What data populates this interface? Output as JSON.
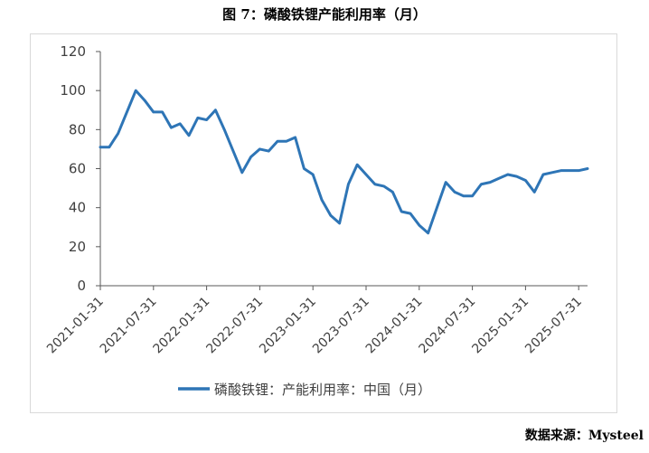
{
  "title": "图 7：磷酸铁锂产能利用率（月）",
  "source": "数据来源：Mysteel",
  "chart_data": {
    "type": "line",
    "title": "图 7：磷酸铁锂产能利用率（月）",
    "xlabel": "",
    "ylabel": "",
    "ylim": [
      0,
      120
    ],
    "yticks": [
      "0",
      "20",
      "40",
      "60",
      "80",
      "100",
      "120"
    ],
    "xticks": [
      "2021-01-31",
      "2021-07-31",
      "2022-01-31",
      "2022-07-31",
      "2023-01-31",
      "2023-07-31",
      "2024-01-31",
      "2024-07-31",
      "2025-01-31",
      "2025-07-31"
    ],
    "grid": false,
    "legend_position": "bottom",
    "series": [
      {
        "name": "磷酸铁锂：产能利用率：中国（月）",
        "color": "#2e75b6",
        "x": [
          "2021-01-31",
          "2021-02-28",
          "2021-03-31",
          "2021-04-30",
          "2021-05-31",
          "2021-06-30",
          "2021-07-31",
          "2021-08-31",
          "2021-09-30",
          "2021-10-31",
          "2021-11-30",
          "2021-12-31",
          "2022-01-31",
          "2022-02-28",
          "2022-03-31",
          "2022-04-30",
          "2022-05-31",
          "2022-06-30",
          "2022-07-31",
          "2022-08-31",
          "2022-09-30",
          "2022-10-31",
          "2022-11-30",
          "2022-12-31",
          "2023-01-31",
          "2023-02-28",
          "2023-03-31",
          "2023-04-30",
          "2023-05-31",
          "2023-06-30",
          "2023-07-31",
          "2023-08-31",
          "2023-09-30",
          "2023-10-31",
          "2023-11-30",
          "2023-12-31",
          "2024-01-31",
          "2024-02-29",
          "2024-03-31",
          "2024-04-30",
          "2024-05-31",
          "2024-06-30",
          "2024-07-31",
          "2024-08-31",
          "2024-09-30",
          "2024-10-31",
          "2024-11-30",
          "2024-12-31",
          "2025-01-31",
          "2025-02-28",
          "2025-03-31",
          "2025-04-30",
          "2025-05-31",
          "2025-06-30",
          "2025-07-31",
          "2025-08-31"
        ],
        "values": [
          71,
          71,
          78,
          89,
          100,
          95,
          89,
          89,
          81,
          83,
          77,
          86,
          85,
          90,
          80,
          69,
          58,
          66,
          70,
          69,
          74,
          74,
          76,
          60,
          57,
          44,
          36,
          32,
          52,
          62,
          57,
          52,
          51,
          48,
          38,
          37,
          31,
          27,
          40,
          53,
          48,
          46,
          46,
          52,
          53,
          55,
          57,
          56,
          54,
          48,
          57,
          58,
          59,
          59,
          59,
          60
        ]
      }
    ]
  }
}
